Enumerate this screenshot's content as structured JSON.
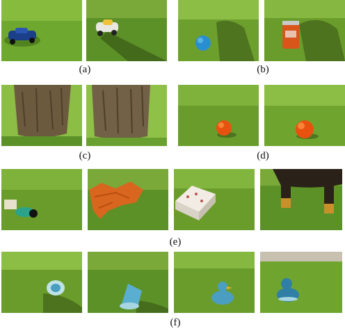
{
  "figure": {
    "labels": [
      "(a)",
      "(b)",
      "(c)",
      "(d)",
      "(e)",
      "(f)"
    ]
  },
  "colors": {
    "grass_light": "#7fb23a",
    "grass_mid": "#5c9127",
    "grass_dark": "#3d6a18",
    "shadow": "#2f4a12",
    "bark": "#6b5a3e",
    "blue_ball": "#2a8fd0",
    "orange_ball": "#e8520f",
    "duck_blue": "#4a9ec2",
    "leaves": "#d8661e"
  }
}
